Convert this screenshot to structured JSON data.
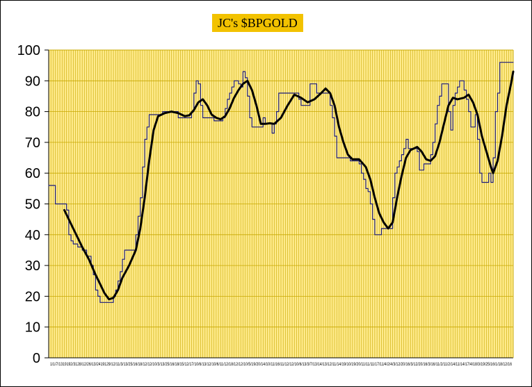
{
  "chart_data": {
    "type": "line",
    "title": "JC's $BPGOLD",
    "xlabel": "",
    "ylabel": "",
    "ylim": [
      0,
      100
    ],
    "yticks": [
      0,
      10,
      20,
      30,
      40,
      50,
      60,
      70,
      80,
      90,
      100
    ],
    "grid": true,
    "legend": "none",
    "colors": {
      "plot_background": "#ffeb8c",
      "grid_line": "#c8a800",
      "title_background": "#f2c200",
      "bp_line": "#1a1a7a",
      "avg_line": "#000000"
    },
    "xticklabels": "1/1/7/1319192/3128/12/26/13/2419129/12/11/3/13/25/16/18/12/12/10/3/13/25/16/18/15/12/17/10/6/13/12/10/6/11/12/18/12/12/10/5/19/20/14/10/11/16/11/12/12/10/6/13/3/7/13/14/13/12/11/14/19/10/19/20/11/11/11/17/11/4/2/4/3/12/20/16/3/12/20/16/3/16/11/2/11/2/14/11/14/17/4/18/3/19/25/16/1/18/12/16",
    "series": [
      {
        "values": [
          [
            0,
            56
          ],
          [
            3,
            50
          ],
          [
            6,
            50
          ],
          [
            8,
            48
          ],
          [
            9,
            40
          ],
          [
            10,
            38
          ],
          [
            11,
            37
          ],
          [
            13,
            36
          ],
          [
            15,
            35
          ],
          [
            17,
            33
          ],
          [
            19,
            30
          ],
          [
            20,
            27
          ],
          [
            21,
            22
          ],
          [
            22,
            20
          ],
          [
            23,
            18
          ],
          [
            28,
            18
          ],
          [
            29,
            20
          ],
          [
            30,
            22
          ],
          [
            31,
            25
          ],
          [
            32,
            28
          ],
          [
            33,
            32
          ],
          [
            34,
            35
          ],
          [
            38,
            35
          ],
          [
            39,
            40
          ],
          [
            40,
            46
          ],
          [
            41,
            52
          ],
          [
            42,
            62
          ],
          [
            43,
            71
          ],
          [
            44,
            75
          ],
          [
            45,
            79
          ],
          [
            50,
            79
          ],
          [
            51,
            80
          ],
          [
            57,
            80
          ],
          [
            58,
            78
          ],
          [
            63,
            78
          ],
          [
            64,
            80
          ],
          [
            65,
            86
          ],
          [
            66,
            90
          ],
          [
            67,
            89
          ],
          [
            68,
            82
          ],
          [
            69,
            78
          ],
          [
            73,
            78
          ],
          [
            74,
            77
          ],
          [
            77,
            77
          ],
          [
            78,
            78
          ],
          [
            79,
            81
          ],
          [
            80,
            84
          ],
          [
            81,
            86
          ],
          [
            82,
            88
          ],
          [
            83,
            90
          ],
          [
            85,
            89
          ],
          [
            86,
            88
          ],
          [
            87,
            93
          ],
          [
            88,
            91
          ],
          [
            89,
            85
          ],
          [
            90,
            78
          ],
          [
            91,
            75
          ],
          [
            95,
            75
          ],
          [
            96,
            78
          ],
          [
            97,
            76
          ],
          [
            99,
            76
          ],
          [
            100,
            73
          ],
          [
            101,
            76
          ],
          [
            102,
            80
          ],
          [
            103,
            86
          ],
          [
            111,
            86
          ],
          [
            112,
            84
          ],
          [
            113,
            82
          ],
          [
            116,
            82
          ],
          [
            117,
            89
          ],
          [
            119,
            89
          ],
          [
            120,
            86
          ],
          [
            125,
            86
          ],
          [
            126,
            82
          ],
          [
            127,
            78
          ],
          [
            128,
            72
          ],
          [
            129,
            65
          ],
          [
            134,
            65
          ],
          [
            135,
            64
          ],
          [
            138,
            64
          ],
          [
            139,
            63
          ],
          [
            140,
            60
          ],
          [
            141,
            58
          ],
          [
            142,
            55
          ],
          [
            143,
            54
          ],
          [
            144,
            50
          ],
          [
            145,
            45
          ],
          [
            146,
            40
          ],
          [
            148,
            40
          ],
          [
            149,
            42
          ],
          [
            153,
            42
          ],
          [
            154,
            52
          ],
          [
            155,
            60
          ],
          [
            156,
            62
          ],
          [
            157,
            64
          ],
          [
            158,
            66
          ],
          [
            159,
            68
          ],
          [
            160,
            71
          ],
          [
            161,
            68
          ],
          [
            165,
            67
          ],
          [
            166,
            61
          ],
          [
            168,
            63
          ],
          [
            170,
            63
          ],
          [
            171,
            66
          ],
          [
            172,
            70
          ],
          [
            173,
            76
          ],
          [
            174,
            82
          ],
          [
            175,
            85
          ],
          [
            176,
            89
          ],
          [
            178,
            89
          ],
          [
            179,
            80
          ],
          [
            180,
            74
          ],
          [
            181,
            82
          ],
          [
            182,
            86
          ],
          [
            183,
            88
          ],
          [
            184,
            90
          ],
          [
            185,
            90
          ],
          [
            186,
            87
          ],
          [
            187,
            84
          ],
          [
            188,
            80
          ],
          [
            189,
            75
          ],
          [
            191,
            79
          ],
          [
            192,
            71
          ],
          [
            193,
            60
          ],
          [
            194,
            57
          ],
          [
            196,
            57
          ],
          [
            197,
            60
          ],
          [
            198,
            57
          ],
          [
            199,
            65
          ],
          [
            200,
            80
          ],
          [
            201,
            86
          ],
          [
            202,
            96
          ],
          [
            208,
            96
          ]
        ]
      },
      {
        "values": [
          [
            7,
            48
          ],
          [
            11,
            42
          ],
          [
            15,
            36
          ],
          [
            18,
            32
          ],
          [
            21,
            27
          ],
          [
            23,
            24
          ],
          [
            25,
            21
          ],
          [
            27,
            19
          ],
          [
            29,
            19.5
          ],
          [
            31,
            22
          ],
          [
            33,
            26
          ],
          [
            36,
            30
          ],
          [
            39,
            35
          ],
          [
            41,
            42
          ],
          [
            43,
            52
          ],
          [
            45,
            64
          ],
          [
            47,
            74
          ],
          [
            49,
            78.5
          ],
          [
            52,
            79.5
          ],
          [
            55,
            80
          ],
          [
            58,
            79.5
          ],
          [
            61,
            78.5
          ],
          [
            63,
            78.8
          ],
          [
            65,
            80.5
          ],
          [
            67,
            83
          ],
          [
            69,
            84
          ],
          [
            71,
            82
          ],
          [
            73,
            79
          ],
          [
            75,
            78
          ],
          [
            77,
            77.5
          ],
          [
            79,
            78.5
          ],
          [
            81,
            81
          ],
          [
            83,
            84.5
          ],
          [
            85,
            87
          ],
          [
            87,
            89
          ],
          [
            89,
            90
          ],
          [
            91,
            87
          ],
          [
            93,
            82
          ],
          [
            95,
            76
          ],
          [
            97,
            76
          ],
          [
            99,
            76.2
          ],
          [
            101,
            76
          ],
          [
            104,
            78
          ],
          [
            107,
            82
          ],
          [
            110,
            85.5
          ],
          [
            113,
            84.5
          ],
          [
            116,
            83
          ],
          [
            119,
            84
          ],
          [
            122,
            86
          ],
          [
            124,
            87.5
          ],
          [
            126,
            86
          ],
          [
            128,
            82
          ],
          [
            130,
            75
          ],
          [
            132,
            70
          ],
          [
            134,
            66
          ],
          [
            136,
            64.5
          ],
          [
            139,
            64.5
          ],
          [
            142,
            62
          ],
          [
            144,
            58
          ],
          [
            146,
            52
          ],
          [
            148,
            47
          ],
          [
            150,
            44
          ],
          [
            152,
            42
          ],
          [
            154,
            44
          ],
          [
            156,
            52
          ],
          [
            158,
            59
          ],
          [
            160,
            65
          ],
          [
            162,
            67.5
          ],
          [
            165,
            68.5
          ],
          [
            167,
            67
          ],
          [
            169,
            64.5
          ],
          [
            171,
            64
          ],
          [
            173,
            65.5
          ],
          [
            175,
            70
          ],
          [
            177,
            76
          ],
          [
            179,
            82
          ],
          [
            181,
            84.5
          ],
          [
            183,
            84
          ],
          [
            186,
            84.5
          ],
          [
            188,
            85.5
          ],
          [
            190,
            83
          ],
          [
            192,
            79
          ],
          [
            194,
            72
          ],
          [
            196,
            67
          ],
          [
            198,
            62
          ],
          [
            199,
            60
          ],
          [
            201,
            64
          ],
          [
            203,
            72
          ],
          [
            205,
            82
          ],
          [
            207,
            89
          ],
          [
            208,
            93
          ]
        ]
      }
    ]
  }
}
